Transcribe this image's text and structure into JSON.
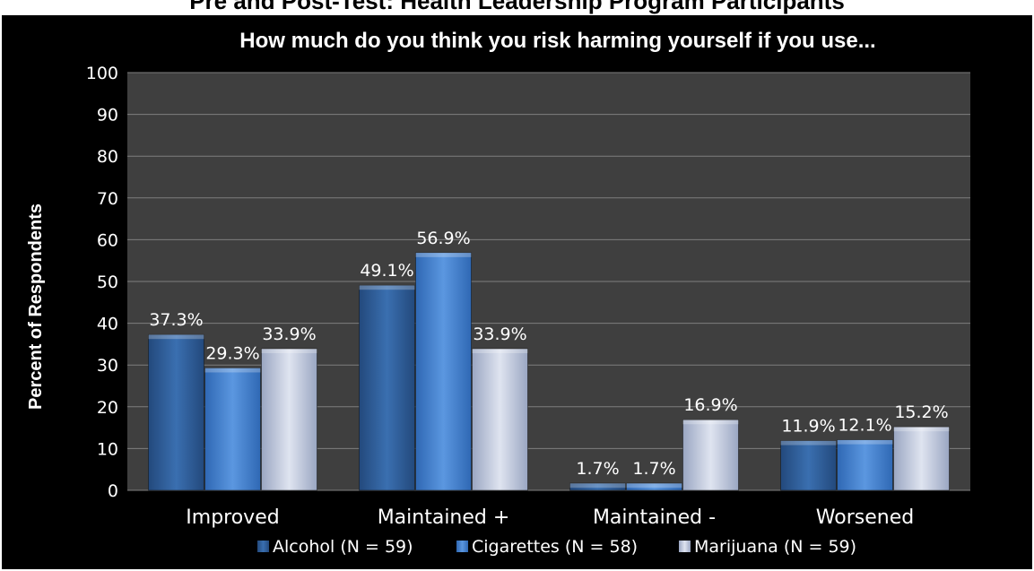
{
  "header_fragment": "Pre and Post-Test: Health Leadership Program Participants",
  "chart_data": {
    "type": "bar",
    "title": "How much do you think you risk harming yourself if you use...",
    "xlabel": "",
    "ylabel": "Percent of Respondents",
    "ylim": [
      0,
      100
    ],
    "yticks": [
      0,
      10,
      20,
      30,
      40,
      50,
      60,
      70,
      80,
      90,
      100
    ],
    "grid": true,
    "legend_position": "bottom",
    "categories": [
      "Improved",
      "Maintained +",
      "Maintained -",
      "Worsened"
    ],
    "series": [
      {
        "name": "Alcohol (N = 59)",
        "values": [
          37.3,
          49.1,
          1.7,
          11.9
        ],
        "labels": [
          "37.3%",
          "49.1%",
          "1.7%",
          "11.9%"
        ],
        "color": "#2e5f9e"
      },
      {
        "name": "Cigarettes (N = 58)",
        "values": [
          29.3,
          56.9,
          1.7,
          12.1
        ],
        "labels": [
          "29.3%",
          "56.9%",
          "1.7%",
          "12.1%"
        ],
        "color": "#3f7fd0"
      },
      {
        "name": "Marijuana (N = 59)",
        "values": [
          33.9,
          33.9,
          16.9,
          15.2
        ],
        "labels": [
          "33.9%",
          "33.9%",
          "16.9%",
          "15.2%"
        ],
        "color": "#b9c3dc"
      }
    ]
  }
}
